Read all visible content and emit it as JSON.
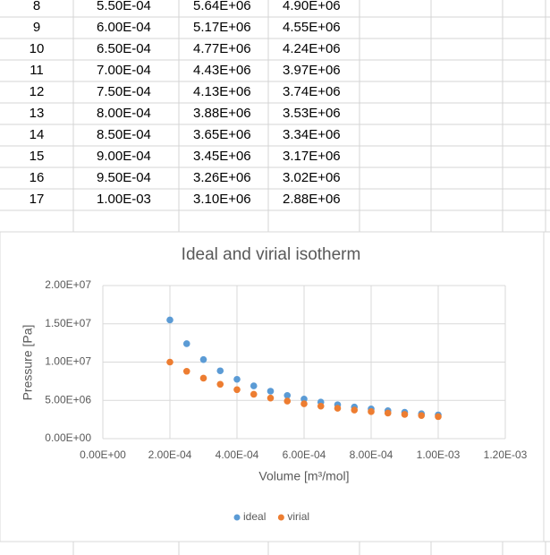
{
  "table": {
    "rows": [
      [
        "8",
        "5.50E-04",
        "5.64E+06",
        "4.90E+06"
      ],
      [
        "9",
        "6.00E-04",
        "5.17E+06",
        "4.55E+06"
      ],
      [
        "10",
        "6.50E-04",
        "4.77E+06",
        "4.24E+06"
      ],
      [
        "11",
        "7.00E-04",
        "4.43E+06",
        "3.97E+06"
      ],
      [
        "12",
        "7.50E-04",
        "4.13E+06",
        "3.74E+06"
      ],
      [
        "13",
        "8.00E-04",
        "3.88E+06",
        "3.53E+06"
      ],
      [
        "14",
        "8.50E-04",
        "3.65E+06",
        "3.34E+06"
      ],
      [
        "15",
        "9.00E-04",
        "3.45E+06",
        "3.17E+06"
      ],
      [
        "16",
        "9.50E-04",
        "3.26E+06",
        "3.02E+06"
      ],
      [
        "17",
        "1.00E-03",
        "3.10E+06",
        "2.88E+06"
      ]
    ]
  },
  "chart_data": {
    "type": "scatter",
    "title": "Ideal and virial isotherm",
    "x_label": "Volume [m³/mol]",
    "y_label": "Pressure [Pa]",
    "x": [
      0.0002,
      0.00025,
      0.0003,
      0.00035,
      0.0004,
      0.00045,
      0.0005,
      0.00055,
      0.0006,
      0.00065,
      0.0007,
      0.00075,
      0.0008,
      0.00085,
      0.0009,
      0.00095,
      0.001
    ],
    "series": [
      {
        "name": "ideal",
        "color": "#5b9bd5",
        "values": [
          15500000,
          12400000,
          10330000,
          8860000,
          7750000,
          6890000,
          6200000,
          5640000,
          5170000,
          4770000,
          4430000,
          4130000,
          3880000,
          3650000,
          3450000,
          3260000,
          3100000
        ]
      },
      {
        "name": "virial",
        "color": "#ed7d31",
        "values": [
          10000000,
          8800000,
          7900000,
          7100000,
          6400000,
          5800000,
          5300000,
          4900000,
          4550000,
          4240000,
          3970000,
          3740000,
          3530000,
          3340000,
          3170000,
          3020000,
          2880000
        ]
      }
    ],
    "xlim": [
      0,
      0.0012
    ],
    "xticks": [
      {
        "value": 0,
        "label": "0.00E+00"
      },
      {
        "value": 0.0002,
        "label": "2.00E-04"
      },
      {
        "value": 0.0004,
        "label": "4.00E-04"
      },
      {
        "value": 0.0006,
        "label": "6.00E-04"
      },
      {
        "value": 0.0008,
        "label": "8.00E-04"
      },
      {
        "value": 0.001,
        "label": "1.00E-03"
      },
      {
        "value": 0.0012,
        "label": "1.20E-03"
      }
    ],
    "ylim": [
      0,
      20000000
    ],
    "yticks": [
      {
        "value": 0,
        "label": "0.00E+00"
      },
      {
        "value": 5000000,
        "label": "5.00E+06"
      },
      {
        "value": 10000000,
        "label": "1.00E+07"
      },
      {
        "value": 15000000,
        "label": "1.50E+07"
      },
      {
        "value": 20000000,
        "label": "2.00E+07"
      }
    ],
    "grid": true,
    "legend": "bottom"
  }
}
